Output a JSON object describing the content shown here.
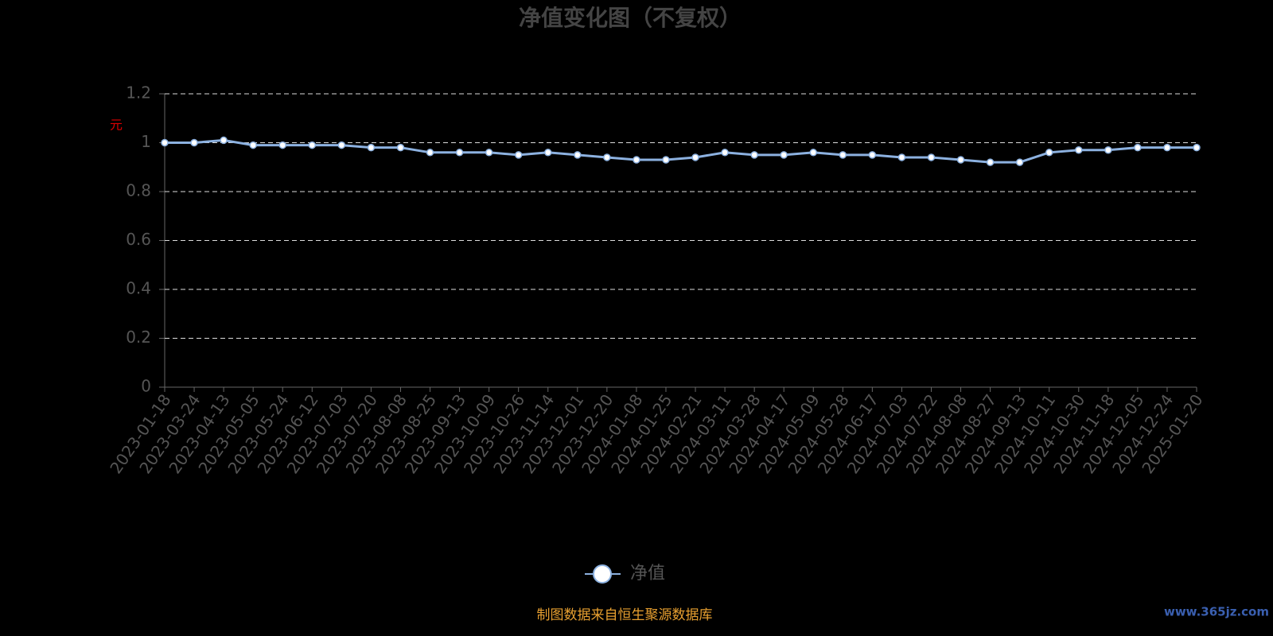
{
  "chart_data": {
    "type": "line",
    "title": "净值变化图（不复权）",
    "y_label": "元",
    "categories": [
      "2023-01-18",
      "2023-03-24",
      "2023-04-13",
      "2023-05-05",
      "2023-05-24",
      "2023-06-12",
      "2023-07-03",
      "2023-07-20",
      "2023-08-08",
      "2023-08-25",
      "2023-09-13",
      "2023-10-09",
      "2023-10-26",
      "2023-11-14",
      "2023-12-01",
      "2023-12-20",
      "2024-01-08",
      "2024-01-25",
      "2024-02-21",
      "2024-03-11",
      "2024-03-28",
      "2024-04-17",
      "2024-05-09",
      "2024-05-28",
      "2024-06-17",
      "2024-07-03",
      "2024-07-22",
      "2024-08-08",
      "2024-08-27",
      "2024-09-13",
      "2024-10-11",
      "2024-10-30",
      "2024-11-18",
      "2024-12-05",
      "2024-12-24",
      "2025-01-20"
    ],
    "series": [
      {
        "name": "净值",
        "color": "#8cb1e0",
        "values": [
          1.0,
          1.0,
          1.01,
          0.99,
          0.99,
          0.99,
          0.99,
          0.98,
          0.98,
          0.96,
          0.96,
          0.96,
          0.95,
          0.96,
          0.95,
          0.94,
          0.93,
          0.93,
          0.94,
          0.96,
          0.95,
          0.95,
          0.96,
          0.95,
          0.95,
          0.94,
          0.94,
          0.93,
          0.92,
          0.92,
          0.96,
          0.97,
          0.97,
          0.98,
          0.98,
          0.98
        ]
      }
    ],
    "ylim": [
      0,
      1.2
    ],
    "yticks": [
      0,
      0.2,
      0.4,
      0.6,
      0.8,
      1,
      1.2
    ],
    "grid": true,
    "source": "制图数据来自恒生聚源数据库",
    "watermark": "www.365jz.com"
  }
}
